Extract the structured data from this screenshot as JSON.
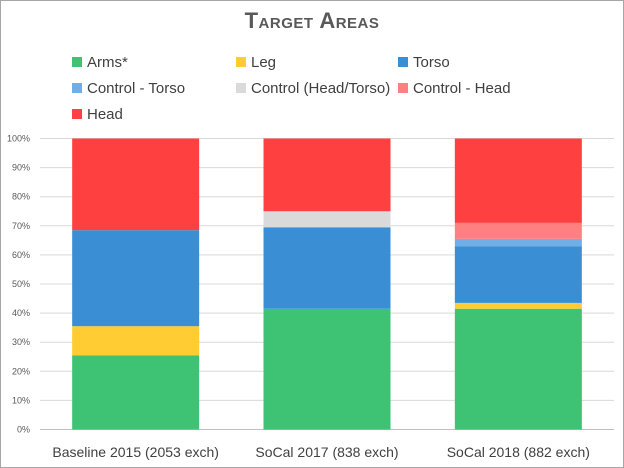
{
  "chart_data": {
    "type": "bar",
    "stacked": true,
    "title": "Target Areas",
    "categories": [
      "Baseline 2015 (2053 exch)",
      "SoCal 2017 (838 exch)",
      "SoCal 2018 (882 exch)"
    ],
    "yticks": [
      "0%",
      "10%",
      "20%",
      "30%",
      "40%",
      "50%",
      "60%",
      "70%",
      "80%",
      "90%",
      "100%"
    ],
    "ylim": [
      0,
      100
    ],
    "grid": true,
    "legend_position": "top",
    "series": [
      {
        "name": "Arms*",
        "color": "#3ec274",
        "values": [
          25.5,
          41.5,
          41.5
        ]
      },
      {
        "name": "Leg",
        "color": "#ffcc33",
        "values": [
          10,
          0,
          2
        ]
      },
      {
        "name": "Torso",
        "color": "#3a8fd4",
        "values": [
          33,
          28,
          19.5
        ]
      },
      {
        "name": "Control - Torso",
        "color": "#72aee6",
        "values": [
          0,
          0,
          2.5
        ]
      },
      {
        "name": "Control (Head/Torso)",
        "color": "#dadada",
        "values": [
          0,
          5.5,
          0
        ]
      },
      {
        "name": "Control - Head",
        "color": "#ff8080",
        "values": [
          0,
          0,
          5.5
        ]
      },
      {
        "name": "Head",
        "color": "#ff4040",
        "values": [
          31.5,
          25,
          29
        ]
      }
    ]
  }
}
